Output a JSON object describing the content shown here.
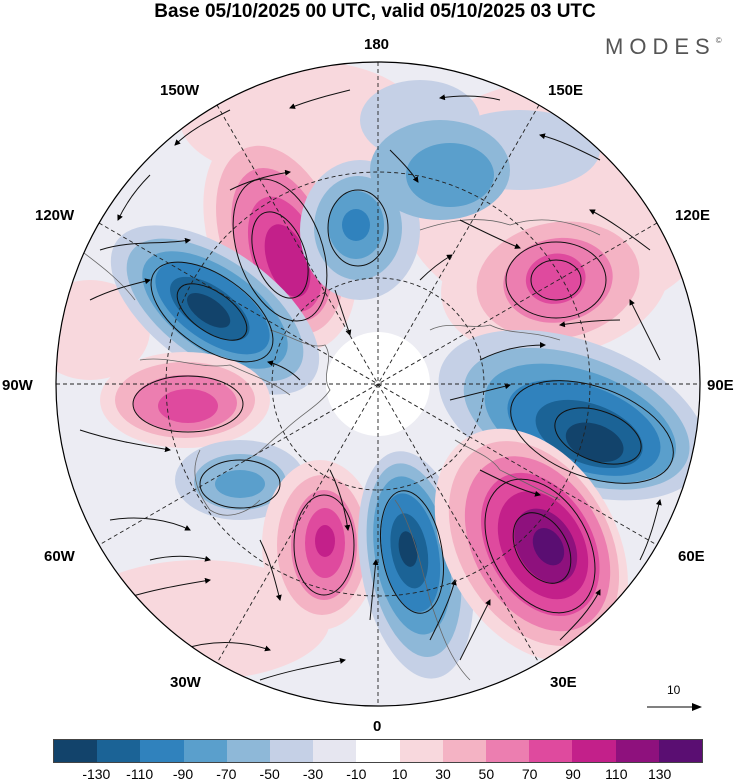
{
  "title": "Base 05/10/2025 00 UTC, valid 05/10/2025 03 UTC",
  "brand": "MODES",
  "brand_mark": "©",
  "longitude_labels": {
    "lon_180": "180",
    "lon_150e": "150E",
    "lon_120e": "120E",
    "lon_90e": "90E",
    "lon_60e": "60E",
    "lon_30e": "30E",
    "lon_0": "0",
    "lon_30w": "30W",
    "lon_60w": "60W",
    "lon_90w": "90W",
    "lon_120w": "120W",
    "lon_150w": "150W"
  },
  "reference_vector_label": "10",
  "colorbar": {
    "colors": [
      "#12436b",
      "#1b6396",
      "#3082bd",
      "#5a9fcc",
      "#8eb8d8",
      "#c5d0e6",
      "#e6e6f0",
      "#ffffff",
      "#f8d8dd",
      "#f4b3c4",
      "#ec7eb0",
      "#df4a9e",
      "#c3208a",
      "#8e117d",
      "#5a0e72"
    ],
    "tick_labels": [
      "-130",
      "-110",
      "-90",
      "-70",
      "-50",
      "-30",
      "-10",
      "10",
      "30",
      "50",
      "70",
      "90",
      "110",
      "130"
    ]
  },
  "features": [
    {
      "name": "anomaly-positive-150w",
      "value": 75
    },
    {
      "name": "anomaly-negative-120w",
      "value": -110
    },
    {
      "name": "anomaly-negative-180",
      "value": -75
    },
    {
      "name": "anomaly-positive-130e",
      "value": 75
    },
    {
      "name": "anomaly-positive-90w",
      "value": 70
    },
    {
      "name": "anomaly-negative-90e",
      "value": -125
    },
    {
      "name": "anomaly-negative-60w",
      "value": -55
    },
    {
      "name": "anomaly-positive-30w",
      "value": 85
    },
    {
      "name": "anomaly-negative-10e",
      "value": -110
    },
    {
      "name": "anomaly-positive-45e",
      "value": 125
    }
  ]
}
